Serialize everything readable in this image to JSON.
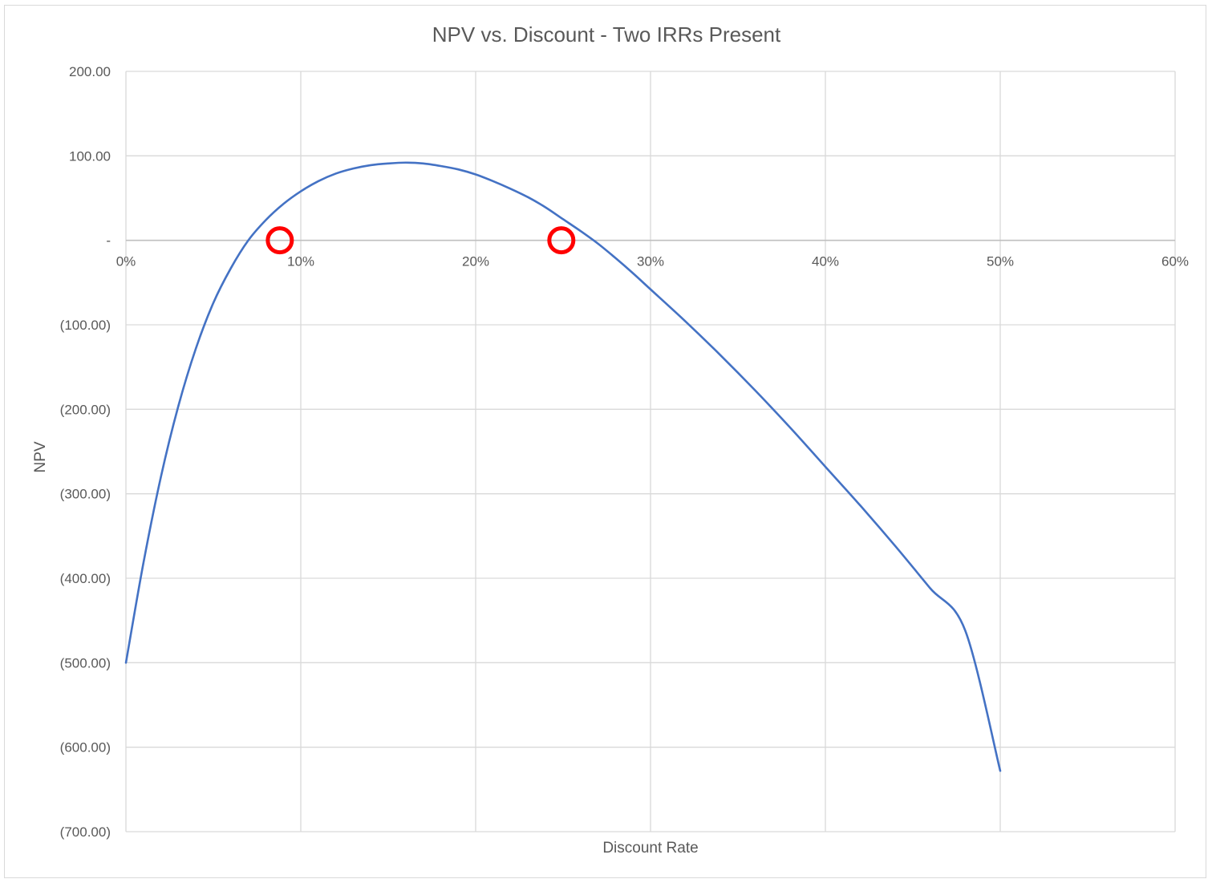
{
  "chart_data": {
    "type": "line",
    "title": "NPV vs. Discount - Two IRRs Present",
    "xlabel": "Discount Rate",
    "ylabel": "NPV",
    "xlim": [
      0,
      0.6
    ],
    "ylim": [
      -700,
      200
    ],
    "x_ticks": [
      0,
      0.1,
      0.2,
      0.3,
      0.4,
      0.5,
      0.6
    ],
    "x_tick_labels": [
      "0%",
      "10%",
      "20%",
      "30%",
      "40%",
      "50%",
      "60%"
    ],
    "y_ticks": [
      200,
      100,
      0,
      -100,
      -200,
      -300,
      -400,
      -500,
      -600,
      -700
    ],
    "y_tick_labels": [
      "200.00",
      "100.00",
      "-",
      "(100.00)",
      "(200.00)",
      "(300.00)",
      "(400.00)",
      "(500.00)",
      "(600.00)",
      "(700.00)"
    ],
    "grid": true,
    "legend": "none",
    "series": [
      {
        "color": "#4472c4",
        "x": [
          0,
          0.01,
          0.02,
          0.03,
          0.04,
          0.05,
          0.06,
          0.07,
          0.08,
          0.09,
          0.1,
          0.11,
          0.12,
          0.13,
          0.14,
          0.15,
          0.16,
          0.17,
          0.18,
          0.19,
          0.2,
          0.21,
          0.22,
          0.23,
          0.24,
          0.25,
          0.26,
          0.27,
          0.28,
          0.29,
          0.3,
          0.32,
          0.34,
          0.36,
          0.38,
          0.4,
          0.42,
          0.44,
          0.46,
          0.48,
          0.5
        ],
        "y": [
          -500,
          -382,
          -280,
          -196,
          -128,
          -74,
          -33,
          0,
          24,
          43,
          58,
          70,
          79,
          85,
          89,
          91,
          92,
          91,
          88,
          84,
          78,
          70,
          61,
          51,
          39,
          25,
          11,
          -4,
          -21,
          -39,
          -58,
          -96,
          -136,
          -178,
          -222,
          -268,
          -314,
          -362,
          -412,
          -462,
          -628
        ]
      }
    ],
    "annotations": [
      {
        "type": "circle",
        "x": 0.088,
        "y": 0,
        "color": "#ff0000"
      },
      {
        "type": "circle",
        "x": 0.249,
        "y": 0,
        "color": "#ff0000"
      }
    ]
  }
}
